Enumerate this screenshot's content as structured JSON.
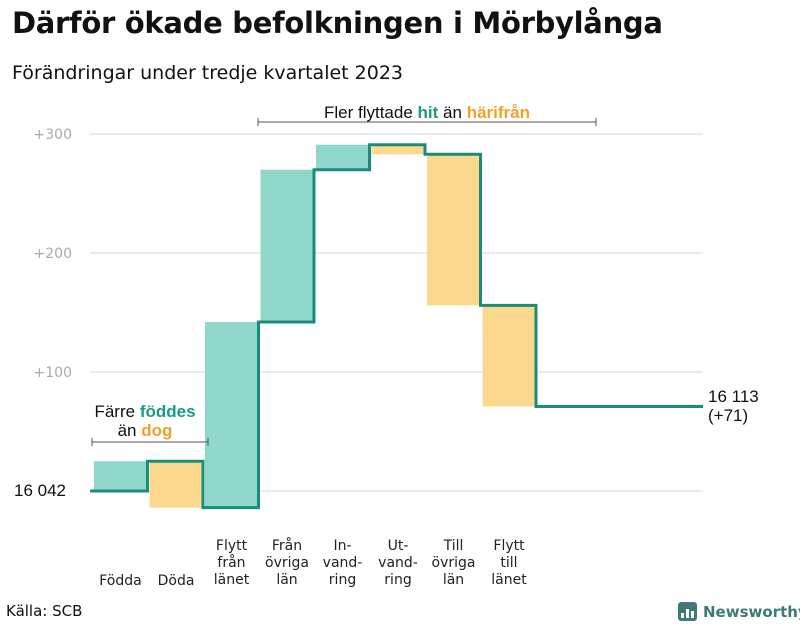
{
  "header": {
    "title": "Därför ökade befolkningen i Mörbylånga",
    "subtitle": "Förändringar under tredje kvartalet 2023"
  },
  "footer": {
    "source": "Källa: SCB",
    "brand": "Newsworthy"
  },
  "annotations": {
    "born_prefix": "Färre",
    "born_highlight": "föddes",
    "born_line2_prefix": "än",
    "born_line2_highlight": "dog",
    "move_prefix": "Fler flyttade",
    "move_highlight_in": "hit",
    "move_middle": "än",
    "move_highlight_out": "härifrån"
  },
  "colors": {
    "increase": "#8fd6cb",
    "decrease": "#fcd88f",
    "line": "#1a8c7c",
    "highlight_in": "#1a9988",
    "highlight_out": "#f0a12a",
    "grid": "#e3e3e3"
  },
  "chart_data": {
    "type": "waterfall",
    "title": "Därför ökade befolkningen i Mörbylånga",
    "subtitle": "Förändringar under tredje kvartalet 2023",
    "start_value": 16042,
    "start_label": "16  042",
    "end_value": 16113,
    "end_label": "16 113",
    "end_change_label": "(+71)",
    "y_ticks": [
      {
        "value": 100,
        "label": "+100"
      },
      {
        "value": 200,
        "label": "+200"
      },
      {
        "value": 300,
        "label": "+300"
      }
    ],
    "ylim": [
      -20,
      320
    ],
    "grid": true,
    "steps": [
      {
        "label": [
          "Födda"
        ],
        "change": 25
      },
      {
        "label": [
          "Döda"
        ],
        "change": -39
      },
      {
        "label": [
          "Flytt",
          "från",
          "länet"
        ],
        "change": 156
      },
      {
        "label": [
          "Från",
          "övriga",
          "län"
        ],
        "change": 128
      },
      {
        "label": [
          "In-",
          "vand-",
          "ring"
        ],
        "change": 21
      },
      {
        "label": [
          "Ut-",
          "vand-",
          "ring"
        ],
        "change": -8
      },
      {
        "label": [
          "Till",
          "övriga",
          "län"
        ],
        "change": -127
      },
      {
        "label": [
          "Flytt",
          "till",
          "länet"
        ],
        "change": -85
      }
    ]
  }
}
